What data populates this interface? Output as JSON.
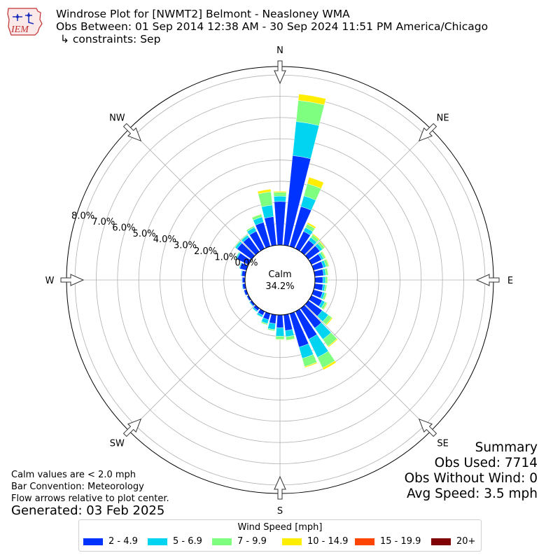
{
  "logo": {
    "text": "IEM"
  },
  "title": {
    "line1": "Windrose Plot for [NWMT2] Belmont - Neasloney WMA",
    "line2": "Obs Between: 01 Sep 2014 12:38 AM - 30 Sep 2024 11:51 PM America/Chicago",
    "line3": "↳ constraints: Sep"
  },
  "notes": {
    "calm": "Calm values are < 2.0 mph",
    "bar_convention": "Bar Convention: Meteorology",
    "flow": "Flow arrows relative to plot center.",
    "generated": "Generated: 03 Feb 2025"
  },
  "summary": {
    "heading": "Summary",
    "obs_used": "Obs Used: 7714",
    "obs_without_wind": "Obs Without Wind: 0",
    "avg_speed": "Avg Speed: 3.5 mph"
  },
  "chart_data": {
    "type": "windrose",
    "center_label": "Calm",
    "calm_percent": "34.2%",
    "compass_labels": [
      "N",
      "NE",
      "E",
      "SE",
      "S",
      "SW",
      "W",
      "NW"
    ],
    "radial_ticks": [
      "0.0%",
      "1.0%",
      "2.0%",
      "3.0%",
      "4.0%",
      "5.0%",
      "6.0%",
      "7.0%",
      "8.0%"
    ],
    "rmax": 8.4,
    "legend_title": "Wind Speed [mph]",
    "speed_bins": [
      {
        "label": "2 - 4.9",
        "color": "#0033ff"
      },
      {
        "label": "5 - 6.9",
        "color": "#00d4f0"
      },
      {
        "label": "7 - 9.9",
        "color": "#7fff7f"
      },
      {
        "label": "10 - 14.9",
        "color": "#ffee00"
      },
      {
        "label": "15 - 19.9",
        "color": "#ff4500"
      },
      {
        "label": "20+",
        "color": "#800000"
      }
    ],
    "sector_width_deg": 10,
    "directions_deg": [
      0,
      10,
      20,
      30,
      40,
      50,
      60,
      70,
      80,
      90,
      100,
      110,
      120,
      130,
      140,
      150,
      160,
      170,
      180,
      190,
      200,
      210,
      220,
      230,
      240,
      250,
      260,
      270,
      280,
      290,
      300,
      310,
      320,
      330,
      340,
      350
    ],
    "series": [
      {
        "name": "2 - 4.9",
        "values": [
          2.05,
          4.24,
          1.95,
          0.9,
          0.66,
          0.67,
          0.53,
          0.48,
          0.42,
          0.37,
          0.39,
          0.44,
          0.56,
          0.8,
          1.15,
          1.45,
          1.64,
          0.75,
          0.6,
          0.42,
          0.3,
          0.2,
          0.14,
          0.1,
          0.09,
          0.12,
          0.13,
          0.13,
          0.17,
          0.32,
          0.61,
          0.85,
          0.84,
          0.91,
          1.18,
          1.35
        ]
      },
      {
        "name": "5 - 6.9",
        "values": [
          0.25,
          1.61,
          0.52,
          0.2,
          0.17,
          0.15,
          0.1,
          0.13,
          0.1,
          0.12,
          0.1,
          0.11,
          0.14,
          0.36,
          0.65,
          0.95,
          0.55,
          0.29,
          0.4,
          0.28,
          0.19,
          0.1,
          0.07,
          0.04,
          0.02,
          0.02,
          0.03,
          0.02,
          0.04,
          0.04,
          0.06,
          0.11,
          0.12,
          0.2,
          0.26,
          0.55
        ]
      },
      {
        "name": "7 - 9.9",
        "values": [
          0.18,
          1.0,
          0.6,
          0.18,
          0.15,
          0.12,
          0.1,
          0.12,
          0.11,
          0.1,
          0.08,
          0.09,
          0.11,
          0.2,
          0.4,
          0.55,
          0.4,
          0.16,
          0.15,
          0.06,
          0.06,
          0.02,
          0.01,
          0.01,
          0.0,
          0.0,
          0.0,
          0.0,
          0.01,
          0.01,
          0.03,
          0.04,
          0.04,
          0.07,
          0.13,
          0.63
        ]
      },
      {
        "name": "10 - 14.9",
        "values": [
          0.05,
          0.3,
          0.31,
          0.08,
          0.05,
          0.04,
          0.03,
          0.03,
          0.02,
          0.02,
          0.01,
          0.02,
          0.03,
          0.05,
          0.05,
          0.1,
          0.05,
          0.02,
          0.02,
          0.0,
          0.0,
          0.0,
          0.0,
          0.0,
          0.0,
          0.0,
          0.0,
          0.0,
          0.0,
          0.0,
          0.0,
          0.0,
          0.0,
          0.01,
          0.02,
          0.12
        ]
      },
      {
        "name": "15 - 19.9",
        "values": [
          0,
          0,
          0,
          0,
          0,
          0,
          0,
          0,
          0,
          0,
          0,
          0,
          0,
          0,
          0,
          0,
          0,
          0,
          0,
          0,
          0,
          0,
          0,
          0,
          0,
          0,
          0,
          0,
          0,
          0,
          0,
          0,
          0,
          0,
          0,
          0
        ]
      },
      {
        "name": "20+",
        "values": [
          0,
          0,
          0,
          0,
          0,
          0,
          0,
          0,
          0,
          0,
          0,
          0,
          0,
          0,
          0,
          0,
          0,
          0,
          0,
          0,
          0,
          0,
          0,
          0,
          0,
          0,
          0,
          0,
          0,
          0,
          0,
          0,
          0,
          0,
          0,
          0
        ]
      }
    ]
  }
}
